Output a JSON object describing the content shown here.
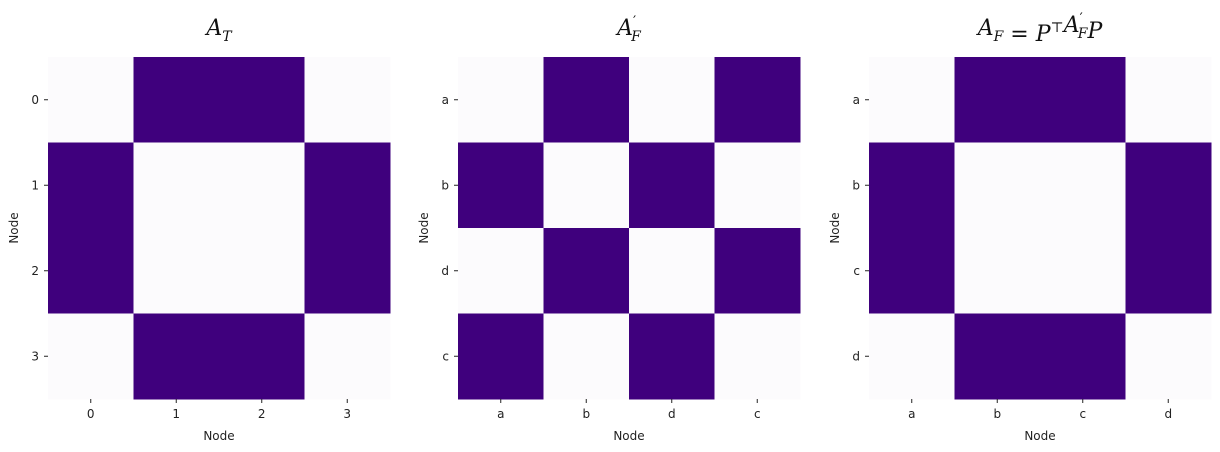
{
  "chart_data": [
    {
      "type": "heatmap",
      "title": "A_T",
      "title_parts": [
        {
          "t": "A",
          "sub": "T"
        }
      ],
      "xlabel": "Node",
      "ylabel": "Node",
      "x_labels": [
        "0",
        "1",
        "2",
        "3"
      ],
      "y_labels": [
        "0",
        "1",
        "2",
        "3"
      ],
      "matrix": [
        [
          0,
          1,
          1,
          0
        ],
        [
          1,
          0,
          0,
          1
        ],
        [
          1,
          0,
          0,
          1
        ],
        [
          0,
          1,
          1,
          0
        ]
      ]
    },
    {
      "type": "heatmap",
      "title": "A'_F",
      "title_parts": [
        {
          "t": "A",
          "sup": "′",
          "sub": "F"
        }
      ],
      "xlabel": "Node",
      "ylabel": "Node",
      "x_labels": [
        "a",
        "b",
        "d",
        "c"
      ],
      "y_labels": [
        "a",
        "b",
        "d",
        "c"
      ],
      "matrix": [
        [
          0,
          1,
          0,
          1
        ],
        [
          1,
          0,
          1,
          0
        ],
        [
          0,
          1,
          0,
          1
        ],
        [
          1,
          0,
          1,
          0
        ]
      ]
    },
    {
      "type": "heatmap",
      "title": "A_F = P^⊤ A'_F P",
      "title_parts": [
        {
          "t": "A",
          "sub": "F"
        },
        {
          "t": " = "
        },
        {
          "t": "P",
          "sup": "⊤"
        },
        {
          "t": "A",
          "sup": "′",
          "sub": "F"
        },
        {
          "t": "P"
        }
      ],
      "xlabel": "Node",
      "ylabel": "Node",
      "x_labels": [
        "a",
        "b",
        "c",
        "d"
      ],
      "y_labels": [
        "a",
        "b",
        "c",
        "d"
      ],
      "matrix": [
        [
          0,
          1,
          1,
          0
        ],
        [
          1,
          0,
          0,
          1
        ],
        [
          1,
          0,
          0,
          1
        ],
        [
          0,
          1,
          1,
          0
        ]
      ]
    }
  ],
  "colors": {
    "high": "#3f007d",
    "low": "#fcfbfd",
    "tick": "#222222",
    "text": "#111111"
  }
}
